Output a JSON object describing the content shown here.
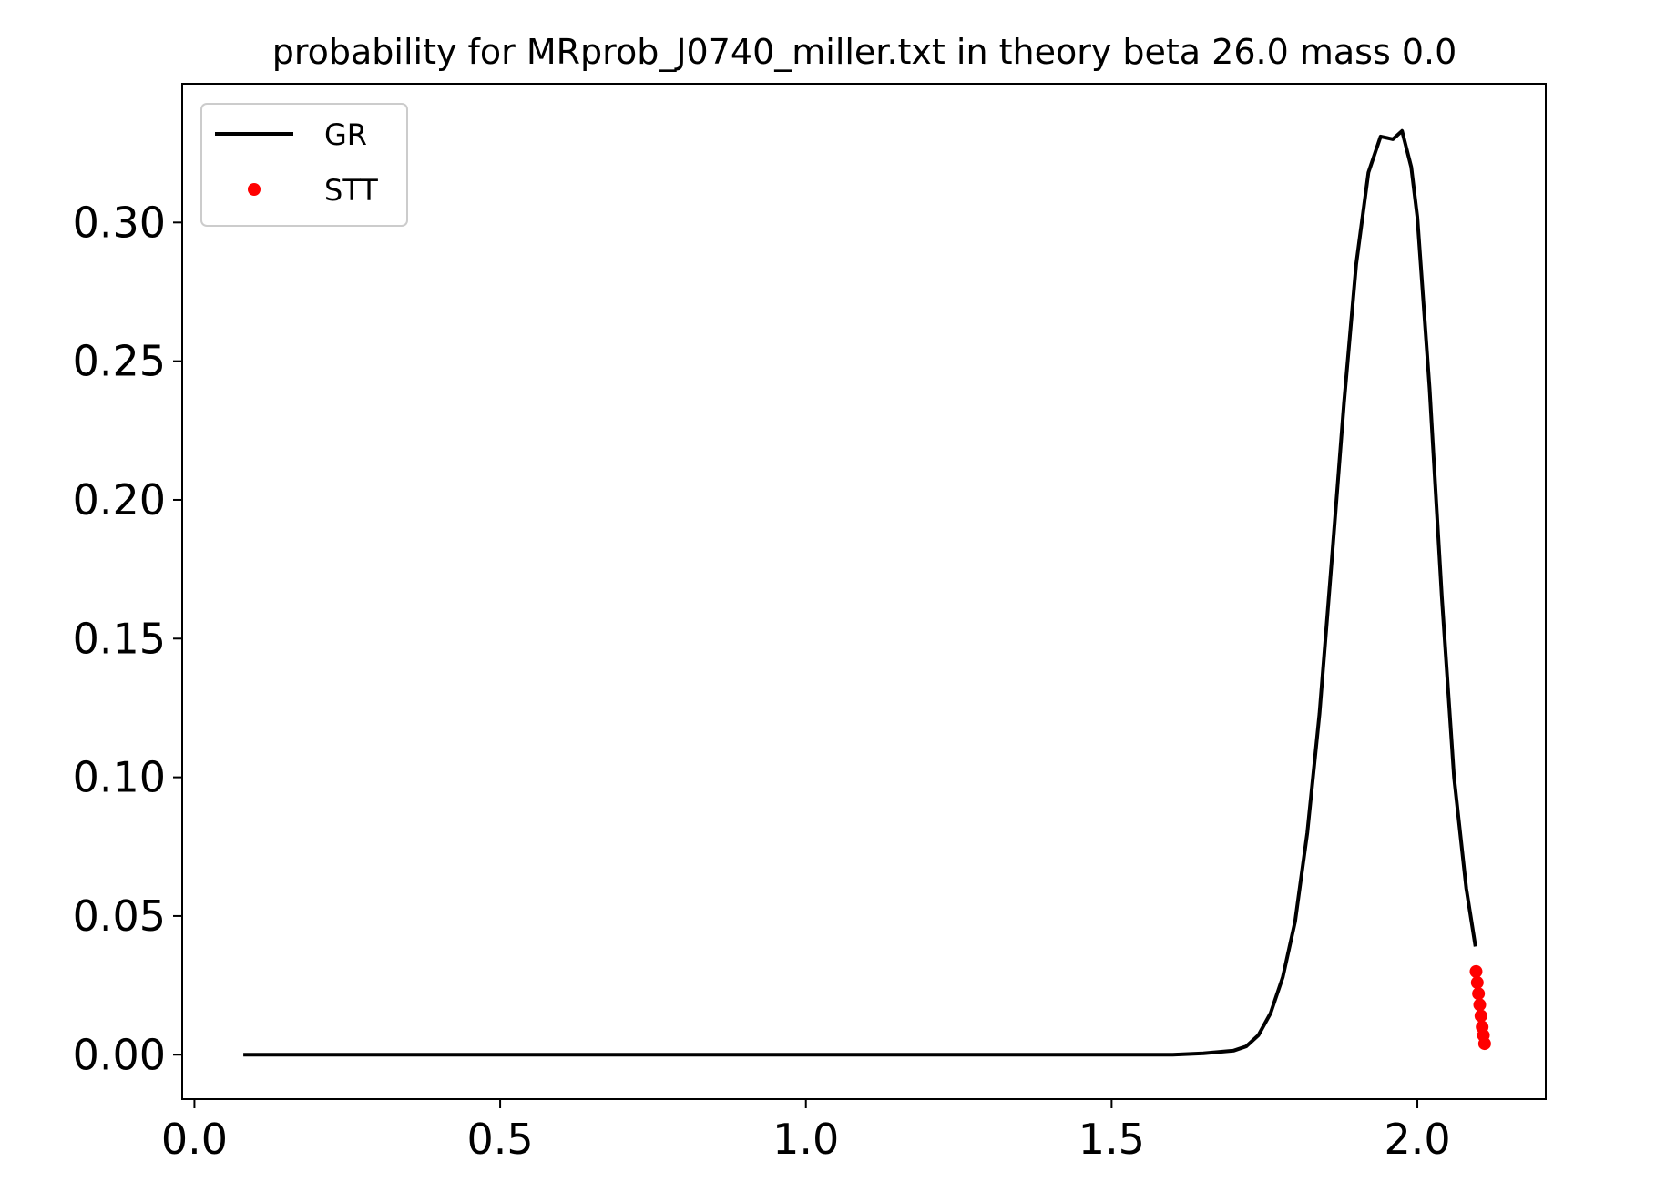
{
  "chart_data": {
    "type": "line",
    "title": "probability for MRprob_J0740_miller.txt in theory beta 26.0 mass 0.0",
    "xlabel": "",
    "ylabel": "",
    "xlim": [
      -0.02,
      2.21
    ],
    "ylim": [
      -0.016,
      0.35
    ],
    "x_ticks": [
      0.0,
      0.5,
      1.0,
      1.5,
      2.0
    ],
    "x_tick_labels": [
      "0.0",
      "0.5",
      "1.0",
      "1.5",
      "2.0"
    ],
    "y_ticks": [
      0.0,
      0.05,
      0.1,
      0.15,
      0.2,
      0.25,
      0.3
    ],
    "y_tick_labels": [
      "0.00",
      "0.05",
      "0.10",
      "0.15",
      "0.20",
      "0.25",
      "0.30"
    ],
    "grid": false,
    "legend": {
      "position": "upper left",
      "entries": [
        "GR",
        "STT"
      ]
    },
    "series": [
      {
        "name": "GR",
        "style": "line",
        "color": "#000000",
        "x": [
          0.08,
          1.6,
          1.65,
          1.7,
          1.72,
          1.74,
          1.76,
          1.78,
          1.8,
          1.82,
          1.84,
          1.86,
          1.88,
          1.9,
          1.92,
          1.94,
          1.96,
          1.975,
          1.99,
          2.0,
          2.02,
          2.04,
          2.06,
          2.08,
          2.095
        ],
        "values": [
          0.0,
          0.0,
          0.0005,
          0.0015,
          0.003,
          0.007,
          0.015,
          0.028,
          0.048,
          0.08,
          0.123,
          0.178,
          0.235,
          0.285,
          0.318,
          0.331,
          0.33,
          0.333,
          0.32,
          0.302,
          0.24,
          0.165,
          0.1,
          0.06,
          0.039
        ]
      },
      {
        "name": "STT",
        "style": "points",
        "color": "#ff0000",
        "x": [
          2.096,
          2.098,
          2.1,
          2.102,
          2.104,
          2.106,
          2.108,
          2.11
        ],
        "values": [
          0.03,
          0.026,
          0.022,
          0.018,
          0.014,
          0.01,
          0.007,
          0.004
        ]
      }
    ]
  }
}
